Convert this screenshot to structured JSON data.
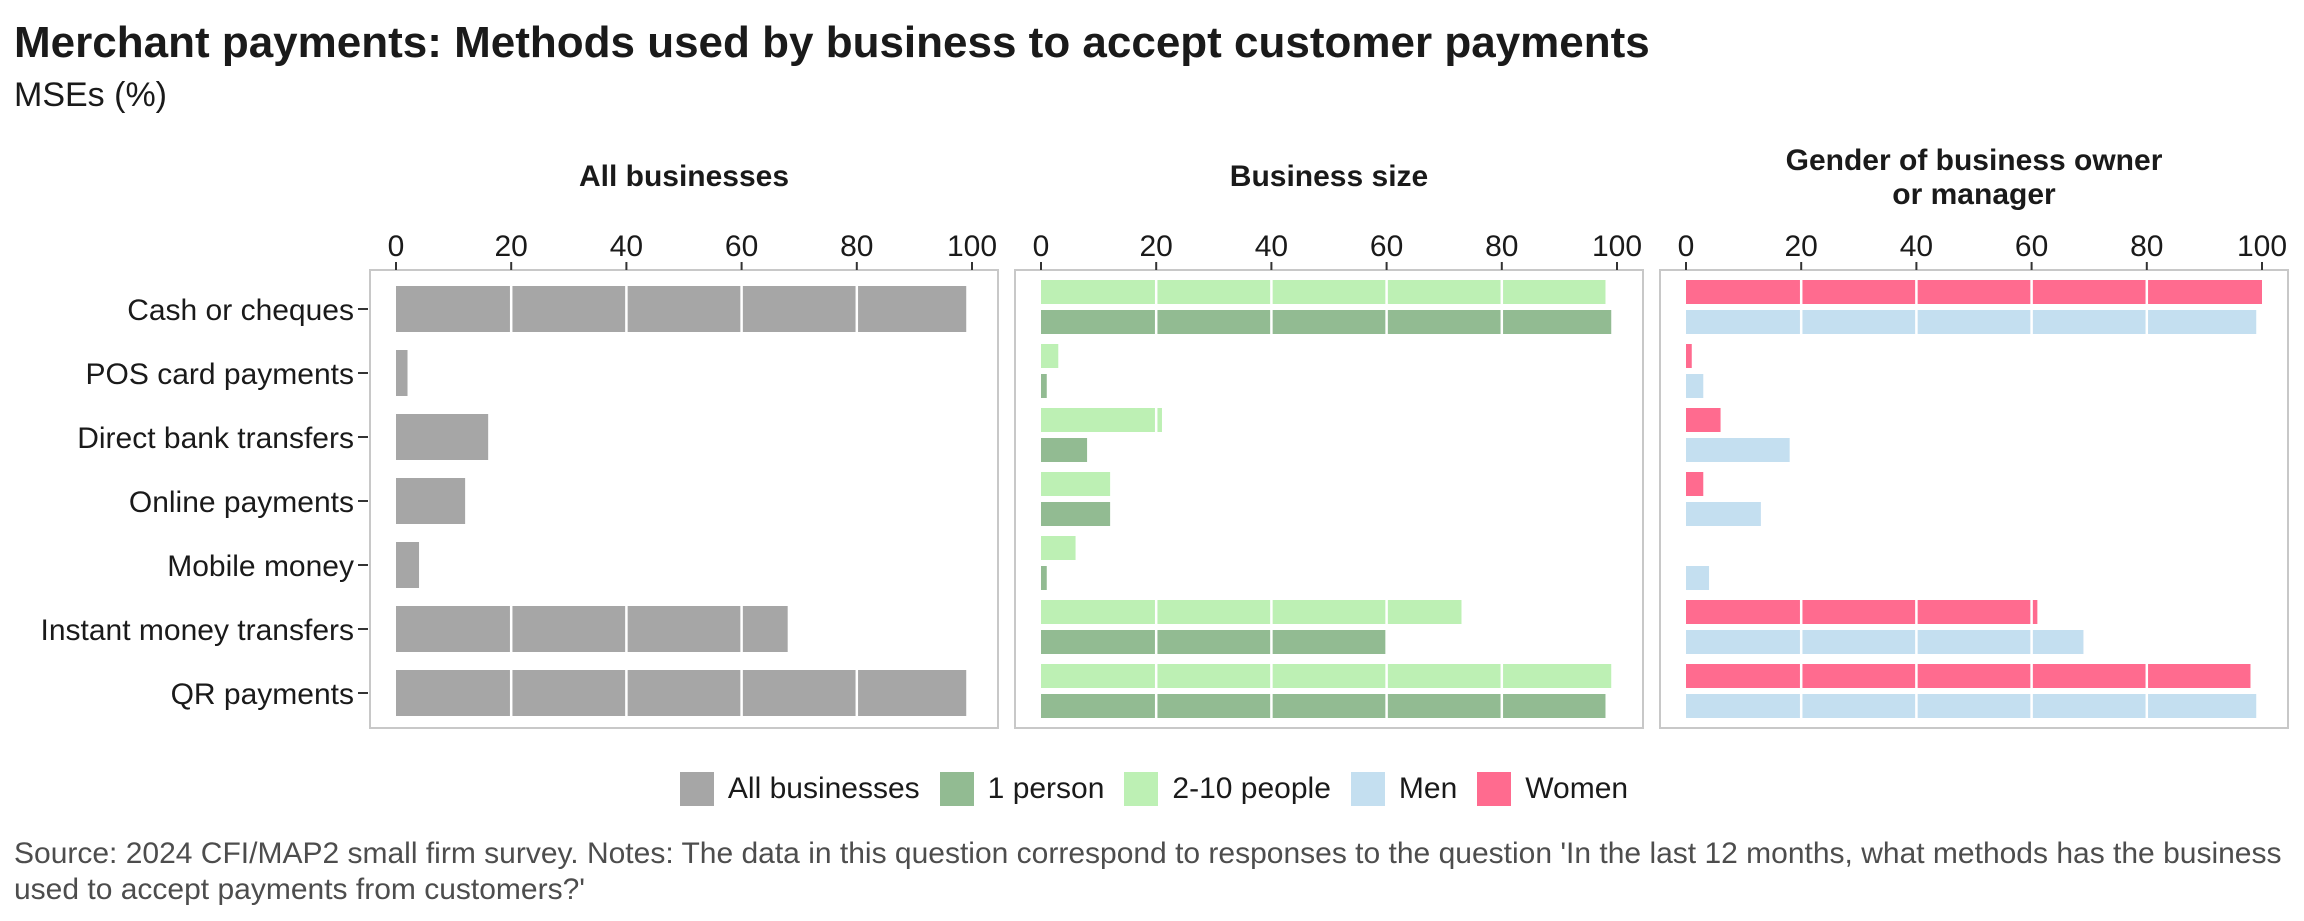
{
  "title": "Merchant payments: Methods used by business to accept customer payments",
  "subtitle": "MSEs (%)",
  "source": "Source: 2024 CFI/MAP2 small firm survey. Notes: The data in this question correspond to responses to the question 'In the last 12 months, what methods has the business used to accept payments from customers?'",
  "legend": [
    {
      "label": "All businesses",
      "color": "#a6a6a6"
    },
    {
      "label": "1 person",
      "color": "#92bb92"
    },
    {
      "label": "2-10 people",
      "color": "#bdf0b4"
    },
    {
      "label": "Men",
      "color": "#c4dff0"
    },
    {
      "label": "Women",
      "color": "#ff6b8f"
    }
  ],
  "chart_data": {
    "type": "bar",
    "orientation": "horizontal",
    "categories": [
      "Cash or cheques",
      "POS card payments",
      "Direct bank transfers",
      "Online payments",
      "Mobile money",
      "Instant money transfers",
      "QR payments"
    ],
    "xlim": [
      0,
      100
    ],
    "x_ticks": [
      "0",
      "20",
      "40",
      "60",
      "80",
      "100"
    ],
    "grid": true,
    "legend_position": "bottom",
    "panels": [
      {
        "title": "All businesses",
        "series": [
          {
            "name": "All businesses",
            "color": "#a6a6a6",
            "values": [
              99,
              2,
              16,
              12,
              4,
              68,
              99
            ]
          }
        ]
      },
      {
        "title": "Business size",
        "series": [
          {
            "name": "2-10 people",
            "color": "#bdf0b4",
            "values": [
              98,
              3,
              21,
              12,
              6,
              73,
              99
            ]
          },
          {
            "name": "1 person",
            "color": "#92bb92",
            "values": [
              99,
              1,
              8,
              12,
              1,
              60,
              98
            ]
          }
        ]
      },
      {
        "title": "Gender of business owner\nor manager",
        "series": [
          {
            "name": "Women",
            "color": "#ff6b8f",
            "values": [
              100,
              1,
              6,
              3,
              0,
              61,
              98
            ]
          },
          {
            "name": "Men",
            "color": "#c4dff0",
            "values": [
              99,
              3,
              18,
              13,
              4,
              69,
              99
            ]
          }
        ]
      }
    ]
  }
}
